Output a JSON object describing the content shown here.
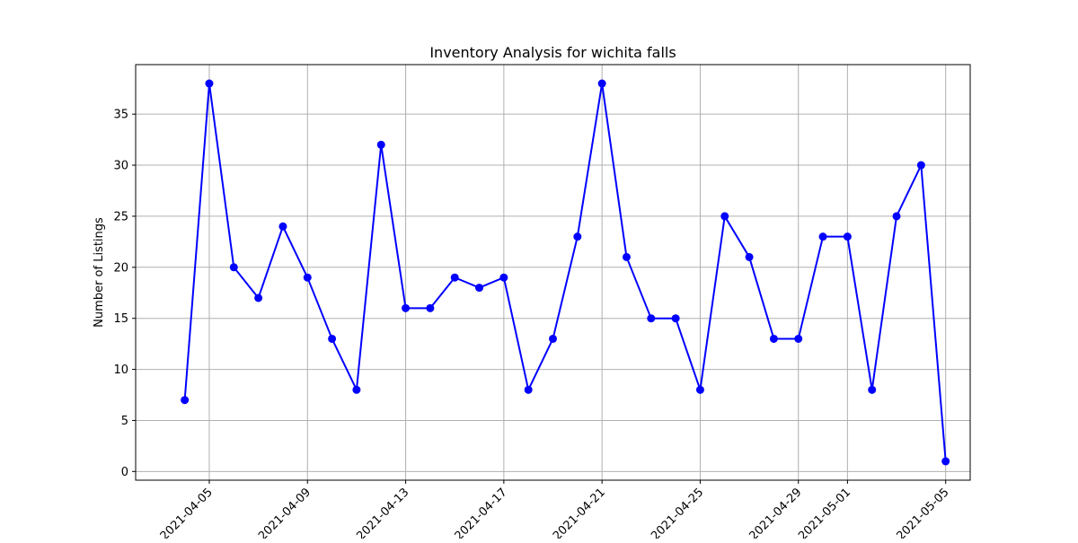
{
  "chart_data": {
    "type": "line",
    "title": "Inventory Analysis for wichita falls",
    "xlabel": "",
    "ylabel": "Number of Listings",
    "x_tick_labels": [
      "2021-04-05",
      "2021-04-09",
      "2021-04-13",
      "2021-04-17",
      "2021-04-21",
      "2021-04-25",
      "2021-04-29",
      "2021-05-01",
      "2021-05-05"
    ],
    "y_ticks": [
      0,
      5,
      10,
      15,
      20,
      25,
      30,
      35
    ],
    "xlim": [
      "2021-04-02",
      "2021-05-06"
    ],
    "ylim": [
      -0.85,
      39.85
    ],
    "grid": true,
    "colors": {
      "line": "#0000ff",
      "marker": "#0000ff",
      "grid": "#b0b0b0"
    },
    "series": [
      {
        "x": [
          "2021-04-04",
          "2021-04-05",
          "2021-04-06",
          "2021-04-07",
          "2021-04-08",
          "2021-04-09",
          "2021-04-10",
          "2021-04-11",
          "2021-04-12",
          "2021-04-13",
          "2021-04-14",
          "2021-04-15",
          "2021-04-16",
          "2021-04-17",
          "2021-04-18",
          "2021-04-19",
          "2021-04-20",
          "2021-04-21",
          "2021-04-22",
          "2021-04-23",
          "2021-04-24",
          "2021-04-25",
          "2021-04-26",
          "2021-04-27",
          "2021-04-28",
          "2021-04-29",
          "2021-04-30",
          "2021-05-01",
          "2021-05-02",
          "2021-05-03",
          "2021-05-04",
          "2021-05-05"
        ],
        "values": [
          7,
          38,
          20,
          17,
          24,
          19,
          13,
          8,
          32,
          16,
          16,
          19,
          18,
          19,
          8,
          13,
          23,
          38,
          21,
          15,
          15,
          8,
          25,
          21,
          13,
          13,
          23,
          23,
          8,
          25,
          30,
          1
        ]
      }
    ]
  }
}
